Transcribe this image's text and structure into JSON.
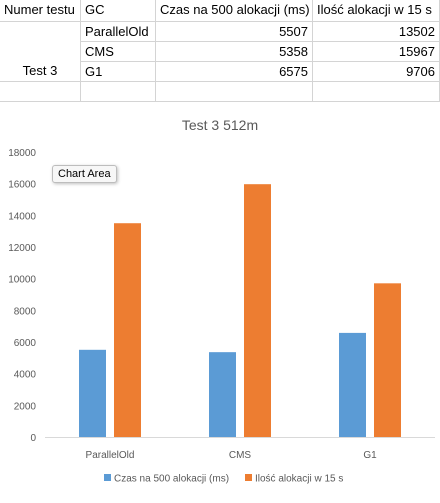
{
  "table": {
    "headers": [
      "Numer testu",
      "GC",
      "Czas na 500 alokacji (ms)",
      "Ilość alokacji w 15 s"
    ],
    "test_label": "Test 3",
    "rows": [
      {
        "gc": "ParallelOld",
        "czas": "5507",
        "ilosc": "13502"
      },
      {
        "gc": "CMS",
        "czas": "5358",
        "ilosc": "15967"
      },
      {
        "gc": "G1",
        "czas": "6575",
        "ilosc": "9706"
      }
    ]
  },
  "tooltip": "Chart Area",
  "chart_data": {
    "type": "bar",
    "title": "Test 3 512m",
    "categories": [
      "ParallelOld",
      "CMS",
      "G1"
    ],
    "series": [
      {
        "name": "Czas na 500 alokacji (ms)",
        "values": [
          5507,
          5358,
          6575
        ],
        "color": "#5B9BD5"
      },
      {
        "name": "Ilość alokacji w 15 s",
        "values": [
          13502,
          15967,
          9706
        ],
        "color": "#ED7D31"
      }
    ],
    "ylim": [
      0,
      18000
    ],
    "yticks": [
      "0",
      "2000",
      "4000",
      "6000",
      "8000",
      "10000",
      "12000",
      "14000",
      "16000",
      "18000"
    ],
    "legend": "bottom",
    "grid": false
  }
}
